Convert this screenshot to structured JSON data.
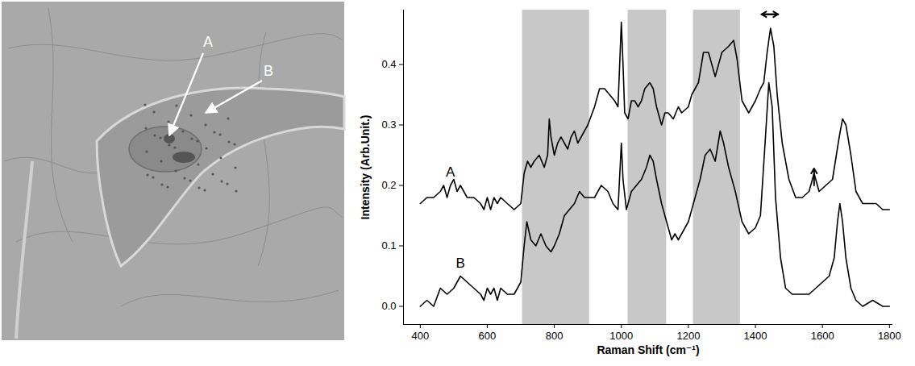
{
  "image": {
    "labels": [
      "A",
      "B"
    ]
  },
  "chart_data": {
    "type": "line",
    "xlabel": "Raman Shift (cm⁻¹)",
    "ylabel": "Intensity (Arb.Unit.)",
    "xlim": [
      350,
      1810
    ],
    "ylim": [
      -0.03,
      0.49
    ],
    "xticks": [
      400,
      600,
      800,
      1000,
      1200,
      1400,
      1600,
      1800
    ],
    "yticks": [
      {
        "value": 0,
        "label": "0.0"
      },
      0.1,
      0.2,
      0.3,
      0.4
    ],
    "grid": false,
    "shaded_regions": [
      [
        705,
        905
      ],
      [
        1020,
        1135
      ],
      [
        1215,
        1355
      ]
    ],
    "double_arrows": [
      {
        "x1": 1418,
        "x2": 1468,
        "y": 0.483
      }
    ],
    "arrows": [
      {
        "x": 1575,
        "y1": 0.2,
        "y2": 0.228
      }
    ],
    "series": [
      {
        "name": "A",
        "color": "#000000",
        "x": [
          400,
          420,
          440,
          460,
          470,
          480,
          490,
          500,
          510,
          520,
          540,
          560,
          580,
          590,
          600,
          610,
          620,
          630,
          640,
          660,
          680,
          700,
          710,
          720,
          730,
          740,
          755,
          770,
          780,
          785,
          790,
          800,
          810,
          820,
          830,
          840,
          850,
          860,
          870,
          880,
          900,
          920,
          935,
          950,
          965,
          980,
          990,
          1000,
          1005,
          1010,
          1020,
          1030,
          1040,
          1050,
          1060,
          1070,
          1085,
          1095,
          1105,
          1120,
          1130,
          1140,
          1155,
          1170,
          1180,
          1200,
          1210,
          1230,
          1245,
          1260,
          1270,
          1280,
          1300,
          1320,
          1335,
          1345,
          1360,
          1380,
          1400,
          1415,
          1425,
          1435,
          1445,
          1455,
          1465,
          1480,
          1500,
          1520,
          1540,
          1560,
          1575,
          1590,
          1610,
          1630,
          1650,
          1660,
          1670,
          1685,
          1700,
          1720,
          1740,
          1760,
          1780,
          1800
        ],
        "values": [
          0.17,
          0.18,
          0.18,
          0.19,
          0.2,
          0.18,
          0.2,
          0.21,
          0.19,
          0.2,
          0.18,
          0.18,
          0.17,
          0.16,
          0.18,
          0.16,
          0.18,
          0.17,
          0.18,
          0.17,
          0.16,
          0.17,
          0.22,
          0.24,
          0.23,
          0.24,
          0.25,
          0.23,
          0.25,
          0.31,
          0.28,
          0.25,
          0.27,
          0.28,
          0.27,
          0.26,
          0.28,
          0.29,
          0.27,
          0.28,
          0.3,
          0.33,
          0.36,
          0.36,
          0.35,
          0.34,
          0.33,
          0.47,
          0.4,
          0.32,
          0.31,
          0.34,
          0.34,
          0.33,
          0.34,
          0.36,
          0.37,
          0.36,
          0.33,
          0.3,
          0.32,
          0.32,
          0.31,
          0.33,
          0.32,
          0.33,
          0.35,
          0.37,
          0.42,
          0.42,
          0.4,
          0.38,
          0.42,
          0.43,
          0.44,
          0.41,
          0.34,
          0.32,
          0.34,
          0.36,
          0.37,
          0.42,
          0.46,
          0.43,
          0.35,
          0.27,
          0.21,
          0.18,
          0.18,
          0.19,
          0.22,
          0.19,
          0.2,
          0.21,
          0.28,
          0.31,
          0.3,
          0.25,
          0.19,
          0.17,
          0.17,
          0.17,
          0.16,
          0.16
        ]
      },
      {
        "name": "B",
        "color": "#000000",
        "x": [
          400,
          420,
          440,
          460,
          480,
          500,
          520,
          540,
          560,
          580,
          590,
          600,
          610,
          620,
          630,
          640,
          660,
          680,
          700,
          710,
          718,
          730,
          745,
          760,
          775,
          790,
          800,
          815,
          830,
          845,
          860,
          875,
          890,
          905,
          920,
          940,
          960,
          975,
          990,
          1000,
          1005,
          1015,
          1030,
          1045,
          1060,
          1075,
          1085,
          1095,
          1105,
          1120,
          1135,
          1150,
          1160,
          1170,
          1180,
          1200,
          1215,
          1235,
          1250,
          1265,
          1280,
          1295,
          1305,
          1320,
          1340,
          1360,
          1380,
          1400,
          1415,
          1430,
          1440,
          1450,
          1460,
          1475,
          1490,
          1510,
          1530,
          1560,
          1580,
          1600,
          1620,
          1635,
          1645,
          1652,
          1660,
          1670,
          1685,
          1700,
          1720,
          1750,
          1780,
          1800
        ],
        "values": [
          0,
          0.01,
          0,
          0.03,
          0.02,
          0.03,
          0.05,
          0.04,
          0.03,
          0.02,
          0.01,
          0.03,
          0.02,
          0.03,
          0.01,
          0.03,
          0.02,
          0.02,
          0.04,
          0.1,
          0.14,
          0.11,
          0.1,
          0.12,
          0.1,
          0.09,
          0.1,
          0.12,
          0.15,
          0.16,
          0.17,
          0.19,
          0.18,
          0.18,
          0.18,
          0.2,
          0.19,
          0.17,
          0.16,
          0.27,
          0.21,
          0.16,
          0.19,
          0.2,
          0.21,
          0.23,
          0.25,
          0.24,
          0.21,
          0.17,
          0.14,
          0.11,
          0.12,
          0.11,
          0.12,
          0.14,
          0.17,
          0.21,
          0.25,
          0.26,
          0.24,
          0.29,
          0.27,
          0.23,
          0.19,
          0.14,
          0.12,
          0.13,
          0.15,
          0.28,
          0.37,
          0.33,
          0.18,
          0.08,
          0.03,
          0.02,
          0.02,
          0.02,
          0.03,
          0.04,
          0.05,
          0.08,
          0.14,
          0.17,
          0.14,
          0.08,
          0.03,
          0.01,
          0,
          0.01,
          0,
          0
        ]
      }
    ]
  }
}
